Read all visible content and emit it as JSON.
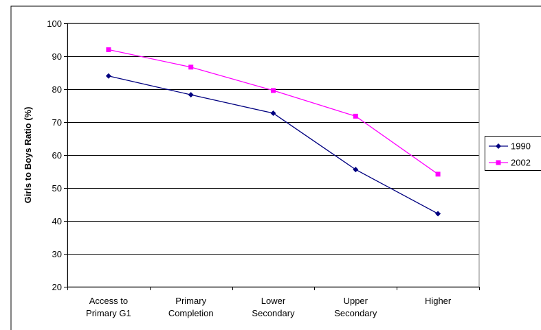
{
  "chart_data": {
    "type": "line",
    "categories": [
      [
        "Access to",
        "Primary G1"
      ],
      [
        "Primary",
        "Completion"
      ],
      [
        "Lower",
        "Secondary"
      ],
      [
        "Upper",
        "Secondary"
      ],
      [
        "Higher"
      ]
    ],
    "series": [
      {
        "name": "1990",
        "color": "#000080",
        "marker": "diamond",
        "values": [
          84,
          78.3,
          72.7,
          55.6,
          42.2
        ]
      },
      {
        "name": "2002",
        "color": "#ff00ff",
        "marker": "square",
        "values": [
          92,
          86.7,
          79.6,
          71.8,
          54.2
        ]
      }
    ],
    "ylabel": "Girls to Boys Ratio (%)",
    "ylim": [
      20,
      100
    ],
    "yticks": [
      20,
      30,
      40,
      50,
      60,
      70,
      80,
      90,
      100
    ],
    "grid": true,
    "legend": "right"
  }
}
